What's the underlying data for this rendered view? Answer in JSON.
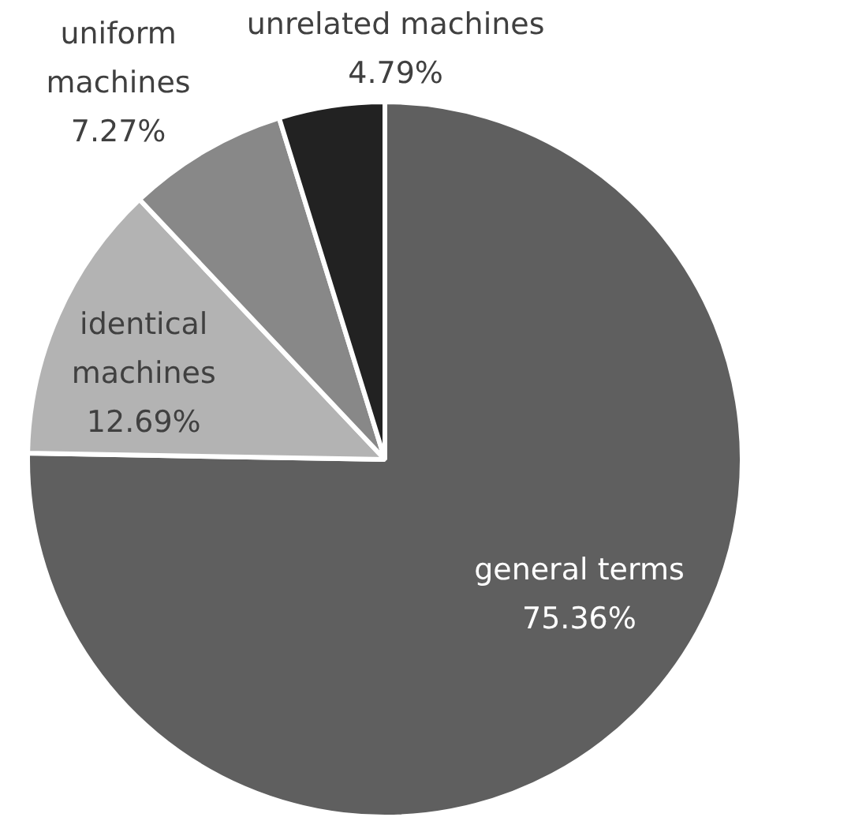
{
  "chart_data": {
    "type": "pie",
    "categories": [
      "general terms",
      "identical machines",
      "uniform machines",
      "unrelated machines"
    ],
    "values": [
      75.36,
      12.69,
      7.27,
      4.79
    ],
    "colors": [
      "#5f5f5f",
      "#b3b3b3",
      "#888888",
      "#222222"
    ],
    "value_labels": [
      "75.36%",
      "12.69%",
      "7.27%",
      "4.79%"
    ],
    "legend": false
  }
}
